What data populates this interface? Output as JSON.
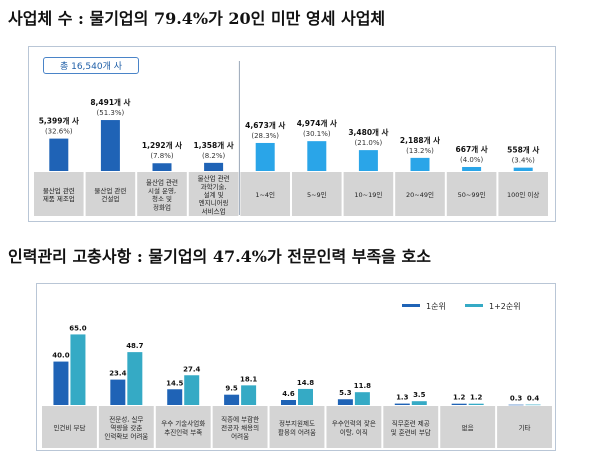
{
  "headings": {
    "top": "사업체 수 : 물기업의 79.4%가 20인 미만 영세 사업체",
    "bottom": "인력관리 고충사항 : 물기업의 47.4%가 전문인력 부족을 호소"
  },
  "total_badge": "총 16,540개 사",
  "colors": {
    "dark_blue": "#1f63b6",
    "light_blue": "#2aa5e8",
    "teal": "#35aac5",
    "label_bg": "#d4d4d4"
  },
  "chart_data": [
    {
      "type": "bar",
      "categories": [
        [
          "물산업 관련",
          "제품 제조업"
        ],
        [
          "물산업 관련",
          "건설업"
        ],
        [
          "물산업 관련",
          "시설 운영,",
          "청소 및",
          "정화업"
        ],
        [
          "물산업 관련",
          "과학기술,",
          "설계 및",
          "엔지니어링",
          "서비스업"
        ],
        [
          "1~4인"
        ],
        [
          "5~9인"
        ],
        [
          "10~19인"
        ],
        [
          "20~49인"
        ],
        [
          "50~99인"
        ],
        [
          "100인 이상"
        ]
      ],
      "values": [
        5399,
        8491,
        1292,
        1358,
        4673,
        4974,
        3480,
        2188,
        667,
        558
      ],
      "value_labels": [
        "5,399개 사",
        "8,491개 사",
        "1,292개 사",
        "1,358개 사",
        "4,673개 사",
        "4,974개 사",
        "3,480개 사",
        "2,188개 사",
        "667개 사",
        "558개 사"
      ],
      "percent_labels": [
        "(32.6%)",
        "(51.3%)",
        "(7.8%)",
        "(8.2%)",
        "(28.3%)",
        "(30.1%)",
        "(21.0%)",
        "(13.2%)",
        "(4.0%)",
        "(3.4%)"
      ],
      "groups": [
        "industry",
        "industry",
        "industry",
        "industry",
        "size",
        "size",
        "size",
        "size",
        "size",
        "size"
      ],
      "ylim": [
        0,
        9000
      ]
    },
    {
      "type": "bar",
      "categories": [
        [
          "인건비 부담"
        ],
        [
          "전문성, 실무",
          "역량을 갖춘",
          "인력확보 어려움"
        ],
        [
          "우수 기술사업화",
          "추진인력 부족"
        ],
        [
          "직종에 부합한",
          "전공자 채용의",
          "어려움"
        ],
        [
          "정부지원제도",
          "활용의 어려움"
        ],
        [
          "우수인력의 잦은",
          "이탈, 이직"
        ],
        [
          "직무훈련 제공",
          "및 훈련비 부담"
        ],
        [
          "없음"
        ],
        [
          "기타"
        ]
      ],
      "series": [
        {
          "name": "1순위",
          "values": [
            40.0,
            23.4,
            14.5,
            9.5,
            4.6,
            5.3,
            1.3,
            1.2,
            0.3
          ],
          "labels": [
            "40.0",
            "23.4",
            "14.5",
            "9.5",
            "4.6",
            "5.3",
            "1.3",
            "1.2",
            "0.3"
          ]
        },
        {
          "name": "1+2순위",
          "values": [
            65.0,
            48.7,
            27.4,
            18.1,
            14.8,
            11.8,
            3.5,
            1.2,
            0.4
          ],
          "labels": [
            "65.0",
            "48.7",
            "27.4",
            "18.1",
            "14.8",
            "11.8",
            "3.5",
            "1.2",
            "0.4"
          ]
        }
      ],
      "legend_position": "top-right",
      "ylim": [
        0,
        70
      ]
    }
  ]
}
